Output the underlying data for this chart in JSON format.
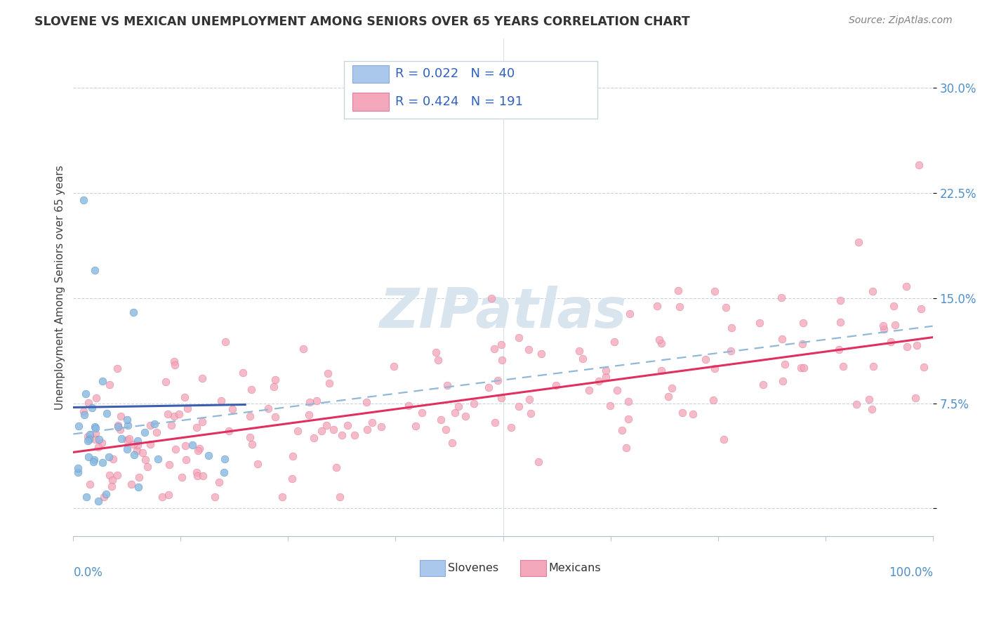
{
  "title": "SLOVENE VS MEXICAN UNEMPLOYMENT AMONG SENIORS OVER 65 YEARS CORRELATION CHART",
  "source": "Source: ZipAtlas.com",
  "ylabel": "Unemployment Among Seniors over 65 years",
  "xlim": [
    0,
    1
  ],
  "ylim": [
    -0.02,
    0.335
  ],
  "yticks": [
    0.0,
    0.075,
    0.15,
    0.225,
    0.3
  ],
  "ytick_labels": [
    "",
    "7.5%",
    "15.0%",
    "22.5%",
    "30.0%"
  ],
  "slovene_color": "#89b8e0",
  "mexican_color": "#f4a4b8",
  "slovene_edge": "#5590c8",
  "mexican_edge": "#e07090",
  "trend_slovene_color": "#3a5fb0",
  "trend_mexican_color": "#e03060",
  "trend_dash_color": "#90b8d8",
  "watermark": "ZIPatlas",
  "watermark_color": "#d8e4ee",
  "background_color": "#ffffff",
  "slovene_R": 0.022,
  "slovene_N": 40,
  "mexican_R": 0.424,
  "mexican_N": 191,
  "mex_trend_x0": 0.0,
  "mex_trend_y0": 0.04,
  "mex_trend_x1": 1.0,
  "mex_trend_y1": 0.122,
  "slo_trend_x0": 0.0,
  "slo_trend_y0": 0.072,
  "slo_trend_x1": 0.2,
  "slo_trend_y1": 0.074,
  "dash_trend_x0": 0.0,
  "dash_trend_y0": 0.053,
  "dash_trend_x1": 1.0,
  "dash_trend_y1": 0.13
}
